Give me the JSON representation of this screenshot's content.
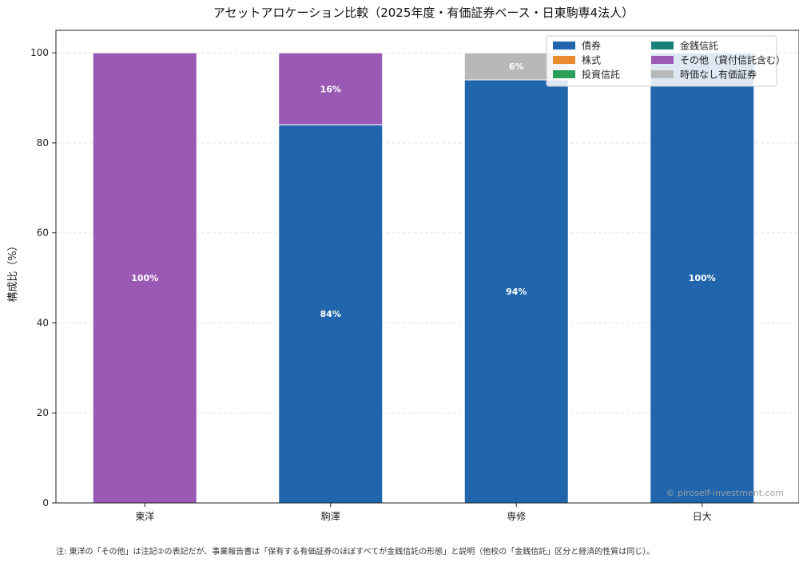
{
  "chart_data": {
    "type": "bar",
    "stacked": true,
    "title": "アセットアロケーション比較（2025年度・有価証券ベース・日東駒専4法人）",
    "xlabel": "",
    "ylabel": "構成比（%）",
    "ylim": [
      0,
      105
    ],
    "yticks": [
      "0",
      "20",
      "40",
      "60",
      "80",
      "100"
    ],
    "grid": true,
    "legend_position": "top-right",
    "categories": [
      "東洋",
      "駒澤",
      "専修",
      "日大"
    ],
    "series": [
      {
        "name": "債券",
        "color": "#2166ac",
        "values": [
          0,
          84,
          94,
          100
        ]
      },
      {
        "name": "株式",
        "color": "#e88a2e",
        "values": [
          0,
          0,
          0,
          0
        ]
      },
      {
        "name": "投資信託",
        "color": "#2ca05a",
        "values": [
          0,
          0,
          0,
          0
        ]
      },
      {
        "name": "金銭信託",
        "color": "#1b7f7a",
        "values": [
          0,
          0,
          0,
          0
        ]
      },
      {
        "name": "その他（貸付信託含む）",
        "color": "#9b59b6",
        "values": [
          100,
          16,
          0,
          0
        ]
      },
      {
        "name": "時価なし有価証券",
        "color": "#b8b8b8",
        "values": [
          0,
          0,
          6,
          0
        ]
      }
    ],
    "data_labels": [
      {
        "category": "東洋",
        "series": "その他（貸付信託含む）",
        "text": "100%"
      },
      {
        "category": "駒澤",
        "series": "債券",
        "text": "84%"
      },
      {
        "category": "駒澤",
        "series": "その他（貸付信託含む）",
        "text": "16%"
      },
      {
        "category": "専修",
        "series": "債券",
        "text": "94%"
      },
      {
        "category": "専修",
        "series": "時価なし有価証券",
        "text": "6%"
      },
      {
        "category": "日大",
        "series": "債券",
        "text": "100%"
      }
    ]
  },
  "watermark": "© piroself-investment.com",
  "footnote": "注: 東洋の「その他」は注記②の表記だが、事業報告書は「保有する有価証券のほぼすべてが金銭信託の形態」と説明（他校の「金銭信託」区分と経済的性質は同じ）。"
}
